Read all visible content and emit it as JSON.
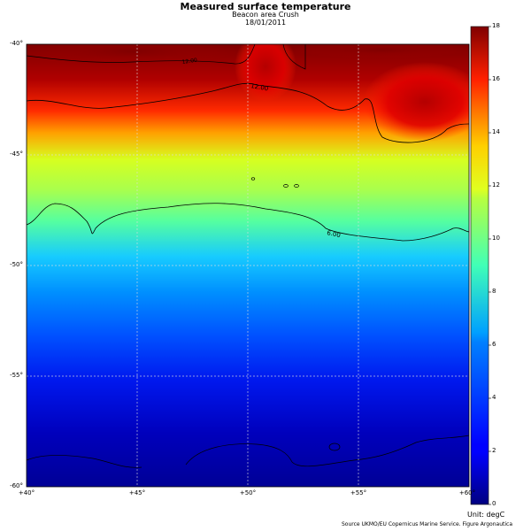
{
  "title": "Measured surface temperature",
  "subtitle": "Beacon area Crush",
  "date": "18/01/2011",
  "lat_labels": [
    "-40°",
    "-45°",
    "-50°",
    "-55°",
    "-60°"
  ],
  "lon_labels": [
    "+40°",
    "+45°",
    "+50°",
    "+55°",
    "+60°"
  ],
  "colorbar": {
    "ticks": [
      "0",
      "2",
      "4",
      "6",
      "8",
      "10",
      "12",
      "14",
      "16",
      "18"
    ],
    "min": 0,
    "max": 18,
    "colormap": "jet"
  },
  "contour_labels": [
    "12.00",
    "6.00",
    "12.00"
  ],
  "unit_label": "Unit: degC",
  "source": "Source UKMO/EU Copernicus Marine Service. Figure Argonautica"
}
